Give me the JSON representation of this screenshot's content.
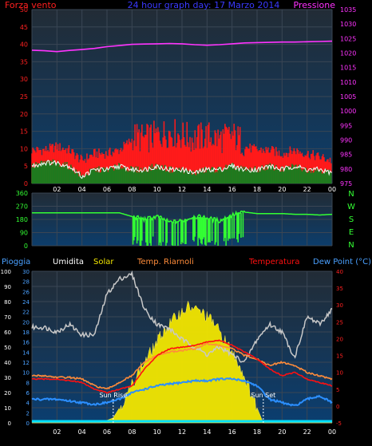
{
  "charts_meta": {
    "top_left_title": "Forza vento",
    "top_center_title": "24 hour graph day: 17 Marzo 2014",
    "top_right_title": "Pressione",
    "bottom_legend": [
      "Pioggia",
      "Umidita",
      "Solar",
      "Temp. Riarnoli",
      "Temperatura",
      "Dew Point (°C)"
    ],
    "sun_rise_label": "Sun Rise",
    "sun_set_label": "Sun Set",
    "direction_labels": [
      "N",
      "W",
      "S",
      "E",
      "N"
    ]
  },
  "colors": {
    "background": "#000000",
    "panel_top": "#1f2a3a",
    "panel_bottom": "#0d3c66",
    "wind_red": "#ff1a1a",
    "wind_green": "#1f7a1f",
    "wind_white": "#ffffff",
    "pressure": "#ff33ff",
    "wind_dir": "#33ff33",
    "title_red": "#ff2020",
    "title_blue": "#3a3aff",
    "humidity": "#c8c8c8",
    "solar": "#f2e600",
    "temp_riarnoli": "#ff8c3a",
    "temperature": "#ff1010",
    "dewpoint": "#2c8fff",
    "rain": "#00e0ff",
    "axis_blue": "#4aa0ff",
    "axis_magenta": "#ff33ff",
    "axis_red": "#ff2020"
  },
  "chart_data": [
    {
      "type": "line",
      "title": "24 hour graph day: 17 Marzo 2014",
      "xlabel": "",
      "x_tick_labels": [
        "02",
        "04",
        "06",
        "08",
        "10",
        "12",
        "14",
        "16",
        "18",
        "20",
        "22",
        "00"
      ],
      "x_hours": [
        0,
        2,
        4,
        6,
        8,
        10,
        12,
        14,
        16,
        18,
        20,
        22,
        24
      ],
      "y_left_label": "Forza vento",
      "y_left_ticks": [
        0,
        5,
        10,
        15,
        20,
        25,
        30,
        35,
        40,
        45,
        50
      ],
      "y_right_label": "Pressione",
      "y_right_ticks": [
        975,
        980,
        985,
        990,
        995,
        1000,
        1005,
        1010,
        1015,
        1020,
        1025,
        1030,
        1035
      ],
      "series": [
        {
          "name": "Pressione",
          "axis": "right",
          "x": [
            0,
            1,
            2,
            3,
            4,
            5,
            6,
            7,
            8,
            9,
            10,
            11,
            12,
            13,
            14,
            15,
            16,
            17,
            18,
            19,
            20,
            21,
            22,
            23,
            24
          ],
          "values": [
            1021,
            1020.8,
            1020.5,
            1020.9,
            1021.2,
            1021.6,
            1022.2,
            1022.6,
            1023.0,
            1023.1,
            1023.2,
            1023.3,
            1023.2,
            1022.9,
            1022.7,
            1022.9,
            1023.2,
            1023.5,
            1023.6,
            1023.7,
            1023.8,
            1023.8,
            1023.9,
            1024.0,
            1024.1
          ]
        },
        {
          "name": "gust",
          "axis": "left",
          "x": [
            0,
            1,
            2,
            3,
            4,
            5,
            6,
            7,
            8,
            9,
            10,
            11,
            12,
            13,
            14,
            15,
            16,
            17,
            18,
            19,
            20,
            21,
            22,
            23,
            24
          ],
          "values": [
            9,
            9,
            10,
            9,
            6,
            8,
            8,
            9,
            12,
            11,
            12,
            13,
            12,
            11,
            12,
            11,
            12,
            10,
            9,
            9,
            8,
            9,
            8,
            7,
            6
          ]
        },
        {
          "name": "average",
          "axis": "left",
          "x": [
            0,
            1,
            2,
            3,
            4,
            5,
            6,
            7,
            8,
            9,
            10,
            11,
            12,
            13,
            14,
            15,
            16,
            17,
            18,
            19,
            20,
            21,
            22,
            23,
            24
          ],
          "values": [
            5,
            6,
            6,
            5,
            2,
            4,
            4,
            5,
            4,
            4,
            5,
            4,
            4,
            3,
            4,
            4,
            5,
            4,
            4,
            5,
            4,
            5,
            4,
            4,
            3
          ]
        }
      ],
      "ylim_left": [
        0,
        50
      ],
      "ylim_right": [
        975,
        1035
      ],
      "grid": true
    },
    {
      "type": "line",
      "title": "",
      "x_tick_labels": [],
      "y_ticks": [
        0,
        90,
        180,
        270,
        360
      ],
      "series": [
        {
          "name": "direction",
          "x": [
            0,
            1,
            2,
            3,
            4,
            5,
            6,
            7,
            8,
            9,
            10,
            11,
            12,
            13,
            14,
            15,
            16,
            17,
            18,
            19,
            20,
            21,
            22,
            23,
            24
          ],
          "values": [
            225,
            225,
            225,
            225,
            225,
            225,
            225,
            225,
            200,
            180,
            200,
            160,
            170,
            200,
            190,
            170,
            210,
            230,
            220,
            220,
            220,
            215,
            215,
            210,
            215
          ]
        }
      ],
      "ylim": [
        0,
        360
      ],
      "grid": true
    },
    {
      "type": "line",
      "title": "",
      "x_tick_labels": [
        "02",
        "04",
        "06",
        "08",
        "10",
        "12",
        "14",
        "16",
        "18",
        "20",
        "22",
        "00"
      ],
      "y_left_ticks": [
        0,
        10,
        20,
        30,
        40,
        50,
        60,
        70,
        80,
        90,
        100
      ],
      "y_mid_ticks": [
        0,
        2,
        4,
        6,
        8,
        10,
        12,
        14,
        16,
        18,
        20,
        22,
        24,
        26,
        28,
        30
      ],
      "y_right_ticks": [
        -5,
        0,
        5,
        10,
        15,
        20,
        25,
        30,
        35,
        40
      ],
      "series": [
        {
          "name": "Umidita",
          "axis": "left",
          "x": [
            0,
            1,
            2,
            3,
            4,
            5,
            6,
            7,
            8,
            9,
            10,
            11,
            12,
            13,
            14,
            15,
            16,
            17,
            18,
            19,
            20,
            21,
            22,
            23,
            24
          ],
          "values": [
            63,
            63,
            60,
            65,
            58,
            58,
            85,
            95,
            98,
            75,
            65,
            62,
            55,
            50,
            45,
            50,
            45,
            40,
            55,
            65,
            60,
            43,
            70,
            65,
            75
          ]
        },
        {
          "name": "Solar",
          "axis": "mid",
          "x": [
            0,
            5.5,
            6.5,
            7.5,
            8.5,
            9.5,
            10.5,
            11.5,
            12.5,
            13.5,
            14.5,
            15.5,
            16.5,
            17.5,
            18.5,
            24
          ],
          "values": [
            0,
            0,
            1,
            5,
            10,
            14,
            18,
            21,
            23,
            22,
            20,
            16,
            12,
            6,
            0,
            0
          ]
        },
        {
          "name": "Temp. Riarnoli",
          "axis": "right",
          "x": [
            0,
            1,
            2,
            3,
            4,
            5,
            6,
            7,
            8,
            9,
            10,
            11,
            12,
            13,
            14,
            15,
            16,
            17,
            18,
            19,
            20,
            21,
            22,
            23,
            24
          ],
          "values": [
            9,
            9,
            8.5,
            8.5,
            8,
            6,
            5,
            7,
            9,
            13,
            15,
            16,
            16.5,
            17,
            18.5,
            18,
            17,
            15,
            14,
            12,
            13,
            12,
            10,
            9,
            8
          ]
        },
        {
          "name": "Temperatura",
          "axis": "right",
          "x": [
            0,
            1,
            2,
            3,
            4,
            5,
            6,
            7,
            8,
            9,
            10,
            11,
            12,
            13,
            14,
            15,
            16,
            17,
            18,
            19,
            20,
            21,
            22,
            23,
            24
          ],
          "values": [
            8,
            8,
            8,
            7.5,
            7,
            5,
            4,
            5,
            6,
            11,
            15,
            17,
            17.5,
            18,
            19,
            19.5,
            18,
            16,
            14,
            11,
            9,
            10,
            8,
            7,
            6
          ]
        },
        {
          "name": "Dew Point",
          "axis": "right",
          "x": [
            0,
            1,
            2,
            3,
            4,
            5,
            6,
            7,
            8,
            9,
            10,
            11,
            12,
            13,
            14,
            15,
            16,
            17,
            18,
            19,
            20,
            21,
            22,
            23,
            24
          ],
          "values": [
            2,
            2,
            2,
            1.5,
            1,
            0.5,
            1,
            2,
            4,
            5,
            6,
            6.5,
            7,
            7.5,
            7.5,
            8,
            8,
            7.5,
            6,
            2,
            1,
            0,
            2,
            3,
            1
          ]
        },
        {
          "name": "Pioggia",
          "axis": "left",
          "x": [
            0,
            24
          ],
          "values": [
            0,
            0
          ]
        }
      ],
      "grid": true
    }
  ]
}
